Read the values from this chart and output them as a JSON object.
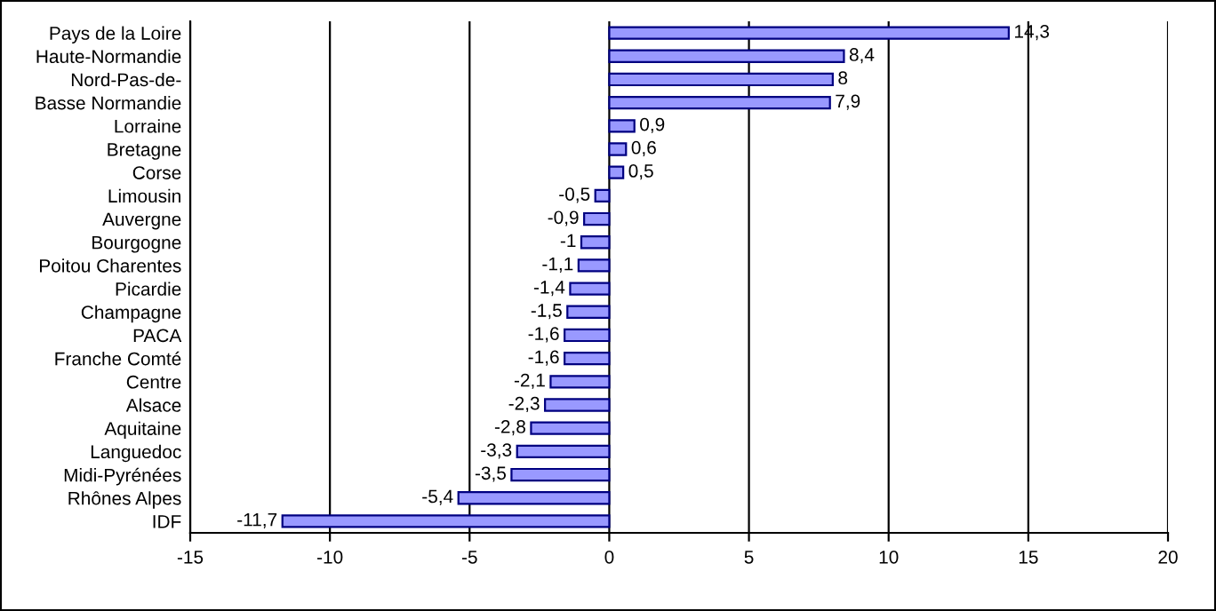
{
  "chart_data": {
    "type": "bar",
    "orientation": "horizontal",
    "categories": [
      "Pays de la Loire",
      "Haute-Normandie",
      "Nord-Pas-de-",
      "Basse Normandie",
      "Lorraine",
      "Bretagne",
      "Corse",
      "Limousin",
      "Auvergne",
      "Bourgogne",
      "Poitou Charentes",
      "Picardie",
      "Champagne",
      "PACA",
      "Franche Comté",
      "Centre",
      "Alsace",
      "Aquitaine",
      "Languedoc",
      "Midi-Pyrénées",
      "Rhônes Alpes",
      "IDF"
    ],
    "values": [
      14.3,
      8.4,
      8,
      7.9,
      0.9,
      0.6,
      0.5,
      -0.5,
      -0.9,
      -1,
      -1.1,
      -1.4,
      -1.5,
      -1.6,
      -1.6,
      -2.1,
      -2.3,
      -2.8,
      -3.3,
      -3.5,
      -5.4,
      -11.7
    ],
    "value_labels": [
      "14,3",
      "8,4",
      "8",
      "7,9",
      "0,9",
      "0,6",
      "0,5",
      "-0,5",
      "-0,9",
      "-1",
      "-1,1",
      "-1,4",
      "-1,5",
      "-1,6",
      "-1,6",
      "-2,1",
      "-2,3",
      "-2,8",
      "-3,3",
      "-3,5",
      "-5,4",
      "-11,7"
    ],
    "color": "#9999ff",
    "xlim": [
      -15,
      20
    ],
    "xticks": [
      -15,
      -10,
      -5,
      0,
      5,
      10,
      15,
      20
    ],
    "grid": "x",
    "legend": false
  }
}
